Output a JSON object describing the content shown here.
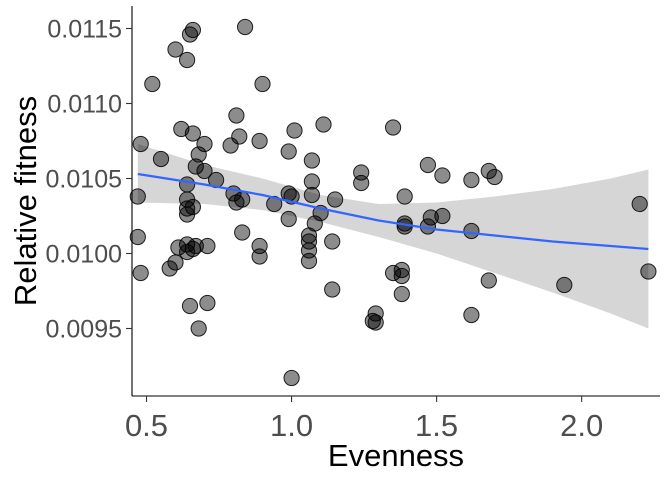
{
  "chart_data": {
    "type": "scatter",
    "xlabel": "Evenness",
    "ylabel": "Relative fitness",
    "xlim": [
      0.45,
      2.27
    ],
    "ylim": [
      0.00905,
      0.01165
    ],
    "x_ticks": [
      0.5,
      1.0,
      1.5,
      2.0
    ],
    "x_tick_labels": [
      "0.5",
      "1.0",
      "1.5",
      "2.0"
    ],
    "y_ticks": [
      0.0095,
      0.01,
      0.0105,
      0.011,
      0.0115
    ],
    "y_tick_labels": [
      "0.0095",
      "0.0100",
      "0.0105",
      "0.0110",
      "0.0115"
    ],
    "grid": false,
    "points": [
      {
        "x": 0.47,
        "y": 0.01038
      },
      {
        "x": 0.47,
        "y": 0.01011
      },
      {
        "x": 0.48,
        "y": 0.01073
      },
      {
        "x": 0.48,
        "y": 0.00987
      },
      {
        "x": 0.52,
        "y": 0.01113
      },
      {
        "x": 0.55,
        "y": 0.01063
      },
      {
        "x": 0.58,
        "y": 0.0099
      },
      {
        "x": 0.6,
        "y": 0.00994
      },
      {
        "x": 0.6,
        "y": 0.01136
      },
      {
        "x": 0.61,
        "y": 0.01004
      },
      {
        "x": 0.62,
        "y": 0.01083
      },
      {
        "x": 0.64,
        "y": 0.01046
      },
      {
        "x": 0.64,
        "y": 0.01036
      },
      {
        "x": 0.64,
        "y": 0.0103
      },
      {
        "x": 0.64,
        "y": 0.01026
      },
      {
        "x": 0.64,
        "y": 0.01006
      },
      {
        "x": 0.64,
        "y": 0.01001
      },
      {
        "x": 0.64,
        "y": 0.01129
      },
      {
        "x": 0.65,
        "y": 0.01146
      },
      {
        "x": 0.65,
        "y": 0.00965
      },
      {
        "x": 0.66,
        "y": 0.01149
      },
      {
        "x": 0.66,
        "y": 0.0108
      },
      {
        "x": 0.66,
        "y": 0.01003
      },
      {
        "x": 0.66,
        "y": 0.01031
      },
      {
        "x": 0.67,
        "y": 0.01005
      },
      {
        "x": 0.67,
        "y": 0.01058
      },
      {
        "x": 0.68,
        "y": 0.0095
      },
      {
        "x": 0.68,
        "y": 0.01066
      },
      {
        "x": 0.7,
        "y": 0.01073
      },
      {
        "x": 0.7,
        "y": 0.01055
      },
      {
        "x": 0.71,
        "y": 0.00967
      },
      {
        "x": 0.71,
        "y": 0.01005
      },
      {
        "x": 0.74,
        "y": 0.01049
      },
      {
        "x": 0.79,
        "y": 0.01072
      },
      {
        "x": 0.8,
        "y": 0.0104
      },
      {
        "x": 0.81,
        "y": 0.01092
      },
      {
        "x": 0.81,
        "y": 0.01034
      },
      {
        "x": 0.82,
        "y": 0.01078
      },
      {
        "x": 0.83,
        "y": 0.01014
      },
      {
        "x": 0.83,
        "y": 0.01036
      },
      {
        "x": 0.84,
        "y": 0.01151
      },
      {
        "x": 0.89,
        "y": 0.01075
      },
      {
        "x": 0.89,
        "y": 0.01005
      },
      {
        "x": 0.89,
        "y": 0.00998
      },
      {
        "x": 0.9,
        "y": 0.01113
      },
      {
        "x": 0.94,
        "y": 0.01033
      },
      {
        "x": 0.99,
        "y": 0.01068
      },
      {
        "x": 0.99,
        "y": 0.0104
      },
      {
        "x": 0.99,
        "y": 0.01023
      },
      {
        "x": 1.0,
        "y": 0.00917
      },
      {
        "x": 1.0,
        "y": 0.01038
      },
      {
        "x": 1.01,
        "y": 0.01082
      },
      {
        "x": 1.06,
        "y": 0.01012
      },
      {
        "x": 1.06,
        "y": 0.01008
      },
      {
        "x": 1.06,
        "y": 0.01002
      },
      {
        "x": 1.06,
        "y": 0.00995
      },
      {
        "x": 1.07,
        "y": 0.01062
      },
      {
        "x": 1.07,
        "y": 0.01048
      },
      {
        "x": 1.07,
        "y": 0.01039
      },
      {
        "x": 1.08,
        "y": 0.0102
      },
      {
        "x": 1.1,
        "y": 0.01027
      },
      {
        "x": 1.11,
        "y": 0.01086
      },
      {
        "x": 1.14,
        "y": 0.01008
      },
      {
        "x": 1.14,
        "y": 0.00976
      },
      {
        "x": 1.15,
        "y": 0.01036
      },
      {
        "x": 1.24,
        "y": 0.01054
      },
      {
        "x": 1.24,
        "y": 0.01047
      },
      {
        "x": 1.28,
        "y": 0.00955
      },
      {
        "x": 1.29,
        "y": 0.00954
      },
      {
        "x": 1.29,
        "y": 0.0096
      },
      {
        "x": 1.35,
        "y": 0.01084
      },
      {
        "x": 1.35,
        "y": 0.00987
      },
      {
        "x": 1.38,
        "y": 0.00989
      },
      {
        "x": 1.38,
        "y": 0.00985
      },
      {
        "x": 1.38,
        "y": 0.00973
      },
      {
        "x": 1.39,
        "y": 0.01038
      },
      {
        "x": 1.39,
        "y": 0.0102
      },
      {
        "x": 1.39,
        "y": 0.01018
      },
      {
        "x": 1.47,
        "y": 0.01059
      },
      {
        "x": 1.47,
        "y": 0.01018
      },
      {
        "x": 1.48,
        "y": 0.01024
      },
      {
        "x": 1.52,
        "y": 0.01052
      },
      {
        "x": 1.52,
        "y": 0.01025
      },
      {
        "x": 1.62,
        "y": 0.01049
      },
      {
        "x": 1.62,
        "y": 0.01015
      },
      {
        "x": 1.62,
        "y": 0.00959
      },
      {
        "x": 1.68,
        "y": 0.01055
      },
      {
        "x": 1.68,
        "y": 0.00982
      },
      {
        "x": 1.7,
        "y": 0.01051
      },
      {
        "x": 1.94,
        "y": 0.00979
      },
      {
        "x": 2.2,
        "y": 0.01033
      },
      {
        "x": 2.23,
        "y": 0.00988
      }
    ],
    "trend": {
      "type": "loess",
      "color": "#3366ff",
      "band_color": "#999999",
      "x": [
        0.47,
        0.7,
        0.9,
        1.1,
        1.3,
        1.5,
        1.7,
        1.9,
        2.1,
        2.23
      ],
      "y": [
        0.01053,
        0.01046,
        0.01039,
        0.0103,
        0.01022,
        0.01016,
        0.01012,
        0.01008,
        0.01005,
        0.01003
      ],
      "lower": [
        0.01034,
        0.01033,
        0.01029,
        0.01021,
        0.01011,
        0.01,
        0.00987,
        0.00974,
        0.0096,
        0.0095
      ],
      "upper": [
        0.01073,
        0.01059,
        0.0105,
        0.01039,
        0.01033,
        0.01034,
        0.01038,
        0.01043,
        0.0105,
        0.01056
      ]
    },
    "point_color": "#000000",
    "point_opacity": 0.45
  }
}
